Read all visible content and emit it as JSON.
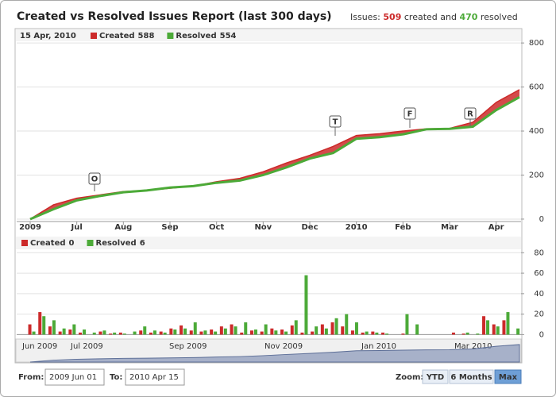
{
  "header": {
    "title": "Created vs Resolved Issues Report (last 300 days)",
    "summary": {
      "prefix": "Issues:",
      "created": 509,
      "middle": "created and",
      "resolved": 470,
      "suffix": "resolved"
    }
  },
  "chart_data": [
    {
      "type": "line",
      "hover_label": "15 Apr, 2010",
      "categories": [
        "2009",
        null,
        "Jul",
        null,
        "Aug",
        null,
        "Sep",
        null,
        "Oct",
        null,
        "Nov",
        null,
        "Dec",
        null,
        "2010",
        null,
        "Feb",
        null,
        "Mar",
        null,
        "Apr",
        null
      ],
      "series": [
        {
          "name": "Created",
          "color": "#cc2a2a",
          "values": [
            0,
            65,
            95,
            110,
            125,
            130,
            140,
            150,
            170,
            185,
            215,
            255,
            290,
            330,
            380,
            388,
            400,
            410,
            412,
            440,
            530,
            588
          ]
        },
        {
          "name": "Resolved",
          "color": "#4caa38",
          "values": [
            0,
            45,
            85,
            105,
            122,
            130,
            143,
            150,
            165,
            175,
            200,
            235,
            275,
            300,
            365,
            372,
            385,
            408,
            410,
            420,
            495,
            554
          ]
        }
      ],
      "ylim": [
        -11,
        804
      ],
      "yticks": [
        0,
        200,
        400,
        600,
        800
      ],
      "grid": true,
      "flags": [
        "O",
        "T",
        "F",
        "R"
      ]
    },
    {
      "type": "bar",
      "categories": [
        null,
        null,
        null,
        null,
        null,
        null,
        null,
        null,
        null,
        null,
        null,
        null,
        null,
        null,
        null,
        null,
        null,
        null,
        null,
        null,
        null,
        null,
        null,
        null,
        null,
        null,
        null,
        null,
        null,
        null,
        null,
        null,
        null,
        null,
        null,
        null,
        null,
        null,
        null,
        null,
        null,
        null,
        null,
        null,
        null,
        null,
        null,
        null,
        null,
        null
      ],
      "series": [
        {
          "name": "Created",
          "color": "#cc2a2a",
          "values": [
            0,
            10,
            22,
            8,
            3,
            5,
            2,
            0,
            3,
            1,
            2,
            0,
            4,
            2,
            3,
            6,
            9,
            4,
            3,
            5,
            8,
            10,
            2,
            4,
            3,
            6,
            5,
            9,
            2,
            3,
            10,
            12,
            8,
            4,
            2,
            3,
            2,
            0,
            1,
            0,
            0,
            0,
            0,
            2,
            1,
            0,
            18,
            10,
            14,
            0
          ]
        },
        {
          "name": "Resolved",
          "color": "#4caa38",
          "values": [
            0,
            3,
            18,
            14,
            6,
            10,
            5,
            2,
            4,
            2,
            1,
            3,
            8,
            4,
            2,
            5,
            6,
            12,
            4,
            3,
            6,
            8,
            12,
            5,
            10,
            4,
            3,
            14,
            58,
            8,
            6,
            16,
            20,
            12,
            3,
            2,
            1,
            0,
            20,
            10,
            0,
            0,
            0,
            0,
            2,
            1,
            14,
            8,
            22,
            6
          ]
        }
      ],
      "ylim": [
        -2,
        81
      ],
      "yticks": [
        0,
        20,
        40,
        60,
        80
      ],
      "grid": true
    }
  ],
  "navigator": {
    "labels": [
      "Jun 2009",
      "Jul 2009",
      "Sep 2009",
      "Nov 2009",
      "Jan 2010",
      "Mar 2010"
    ]
  },
  "controls": {
    "from_label": "From:",
    "from": "2009 Jun 01",
    "to_label": "To:",
    "to": "2010 Apr 15",
    "zoom_label": "Zoom:",
    "buttons": [
      "YTD",
      "6 Months",
      "Max"
    ]
  }
}
